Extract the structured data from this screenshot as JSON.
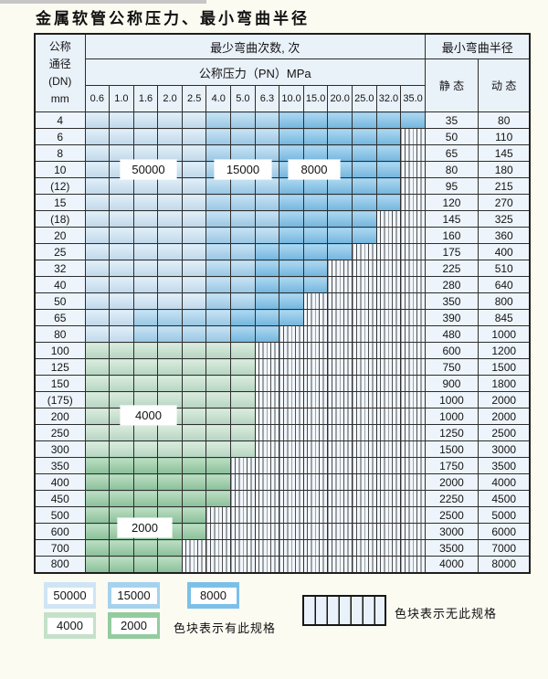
{
  "page": {
    "title": "金属软管公称压力、最小弯曲半径"
  },
  "colors": {
    "b50000": "#cfe5f5",
    "b15000": "#a5d2ee",
    "b8000": "#7cc0e8",
    "b4000": "#c4e1ca",
    "b2000": "#94cb9f",
    "header_bg": "#e9f1f9",
    "grid_line": "#2d2d2d"
  },
  "table": {
    "corner_header": [
      "公称",
      "通径",
      "(DN)",
      "mm"
    ],
    "cycles_header": "最少弯曲次数, 次",
    "radius_header": "最小弯曲半径",
    "pressure_header": "公称压力（PN）MPa",
    "static_header": "静 态",
    "dynamic_header": "动 态",
    "pressure_columns": [
      "0.6",
      "1.0",
      "1.6",
      "2.0",
      "2.5",
      "4.0",
      "5.0",
      "6.3",
      "10.0",
      "15.0",
      "20.0",
      "25.0",
      "32.0",
      "35.0"
    ],
    "rows": [
      {
        "dn": "4",
        "static": "35",
        "dynamic": "80",
        "bands": [
          [
            "b50000",
            0,
            4
          ],
          [
            "b15000",
            5,
            7
          ],
          [
            "b8000",
            8,
            13
          ]
        ]
      },
      {
        "dn": "6",
        "static": "50",
        "dynamic": "110",
        "bands": [
          [
            "b50000",
            0,
            4
          ],
          [
            "b15000",
            5,
            7
          ],
          [
            "b8000",
            8,
            12
          ]
        ]
      },
      {
        "dn": "8",
        "static": "65",
        "dynamic": "145",
        "bands": [
          [
            "b50000",
            0,
            4
          ],
          [
            "b15000",
            5,
            7
          ],
          [
            "b8000",
            8,
            12
          ]
        ]
      },
      {
        "dn": "10",
        "static": "80",
        "dynamic": "180",
        "bands": [
          [
            "b50000",
            0,
            4
          ],
          [
            "b15000",
            5,
            7
          ],
          [
            "b8000",
            8,
            12
          ]
        ]
      },
      {
        "dn": "(12)",
        "static": "95",
        "dynamic": "215",
        "bands": [
          [
            "b50000",
            0,
            4
          ],
          [
            "b15000",
            5,
            7
          ],
          [
            "b8000",
            8,
            12
          ]
        ]
      },
      {
        "dn": "15",
        "static": "120",
        "dynamic": "270",
        "bands": [
          [
            "b50000",
            0,
            4
          ],
          [
            "b15000",
            5,
            7
          ],
          [
            "b8000",
            8,
            12
          ]
        ]
      },
      {
        "dn": "(18)",
        "static": "145",
        "dynamic": "325",
        "bands": [
          [
            "b50000",
            0,
            4
          ],
          [
            "b15000",
            5,
            7
          ],
          [
            "b8000",
            8,
            11
          ]
        ]
      },
      {
        "dn": "20",
        "static": "160",
        "dynamic": "360",
        "bands": [
          [
            "b50000",
            0,
            4
          ],
          [
            "b15000",
            5,
            7
          ],
          [
            "b8000",
            8,
            11
          ]
        ]
      },
      {
        "dn": "25",
        "static": "175",
        "dynamic": "400",
        "bands": [
          [
            "b50000",
            0,
            4
          ],
          [
            "b15000",
            5,
            6
          ],
          [
            "b8000",
            7,
            10
          ]
        ]
      },
      {
        "dn": "32",
        "static": "225",
        "dynamic": "510",
        "bands": [
          [
            "b50000",
            0,
            4
          ],
          [
            "b15000",
            5,
            6
          ],
          [
            "b8000",
            7,
            9
          ]
        ]
      },
      {
        "dn": "40",
        "static": "280",
        "dynamic": "640",
        "bands": [
          [
            "b50000",
            0,
            4
          ],
          [
            "b15000",
            5,
            6
          ],
          [
            "b8000",
            7,
            9
          ]
        ]
      },
      {
        "dn": "50",
        "static": "350",
        "dynamic": "800",
        "bands": [
          [
            "b50000",
            0,
            4
          ],
          [
            "b15000",
            5,
            6
          ],
          [
            "b8000",
            7,
            8
          ]
        ]
      },
      {
        "dn": "65",
        "static": "390",
        "dynamic": "845",
        "bands": [
          [
            "b50000",
            0,
            1
          ],
          [
            "b15000",
            2,
            5
          ],
          [
            "b8000",
            6,
            8
          ]
        ]
      },
      {
        "dn": "80",
        "static": "480",
        "dynamic": "1000",
        "bands": [
          [
            "b50000",
            0,
            1
          ],
          [
            "b15000",
            2,
            5
          ],
          [
            "b8000",
            6,
            7
          ]
        ]
      },
      {
        "dn": "100",
        "static": "600",
        "dynamic": "1200",
        "bands": [
          [
            "b4000",
            0,
            6
          ]
        ]
      },
      {
        "dn": "125",
        "static": "750",
        "dynamic": "1500",
        "bands": [
          [
            "b4000",
            0,
            6
          ]
        ]
      },
      {
        "dn": "150",
        "static": "900",
        "dynamic": "1800",
        "bands": [
          [
            "b4000",
            0,
            6
          ]
        ]
      },
      {
        "dn": "(175)",
        "static": "1000",
        "dynamic": "2000",
        "bands": [
          [
            "b4000",
            0,
            6
          ]
        ]
      },
      {
        "dn": "200",
        "static": "1000",
        "dynamic": "2000",
        "bands": [
          [
            "b4000",
            0,
            6
          ]
        ]
      },
      {
        "dn": "250",
        "static": "1250",
        "dynamic": "2500",
        "bands": [
          [
            "b4000",
            0,
            6
          ]
        ]
      },
      {
        "dn": "300",
        "static": "1500",
        "dynamic": "3000",
        "bands": [
          [
            "b4000",
            0,
            6
          ]
        ]
      },
      {
        "dn": "350",
        "static": "1750",
        "dynamic": "3500",
        "bands": [
          [
            "b2000",
            0,
            5
          ]
        ]
      },
      {
        "dn": "400",
        "static": "2000",
        "dynamic": "4000",
        "bands": [
          [
            "b2000",
            0,
            5
          ]
        ]
      },
      {
        "dn": "450",
        "static": "2250",
        "dynamic": "4500",
        "bands": [
          [
            "b2000",
            0,
            5
          ]
        ]
      },
      {
        "dn": "500",
        "static": "2500",
        "dynamic": "5000",
        "bands": [
          [
            "b2000",
            0,
            4
          ]
        ]
      },
      {
        "dn": "600",
        "static": "3000",
        "dynamic": "6000",
        "bands": [
          [
            "b2000",
            0,
            4
          ]
        ]
      },
      {
        "dn": "700",
        "static": "3500",
        "dynamic": "7000",
        "bands": [
          [
            "b2000",
            0,
            3
          ]
        ]
      },
      {
        "dn": "800",
        "static": "4000",
        "dynamic": "8000",
        "bands": [
          [
            "b2000",
            0,
            3
          ]
        ]
      }
    ],
    "cycle_labels": {
      "l50000": "50000",
      "l15000": "15000",
      "l8000": "8000",
      "l4000": "4000",
      "l2000": "2000"
    }
  },
  "legend": {
    "swatches": [
      {
        "key": "b50000",
        "label": "50000"
      },
      {
        "key": "b15000",
        "label": "15000"
      },
      {
        "key": "b8000",
        "label": "8000"
      },
      {
        "key": "b4000",
        "label": "4000"
      },
      {
        "key": "b2000",
        "label": "2000"
      }
    ],
    "has_spec_text": "色块表示有此规格",
    "no_spec_text": "色块表示无此规格"
  }
}
